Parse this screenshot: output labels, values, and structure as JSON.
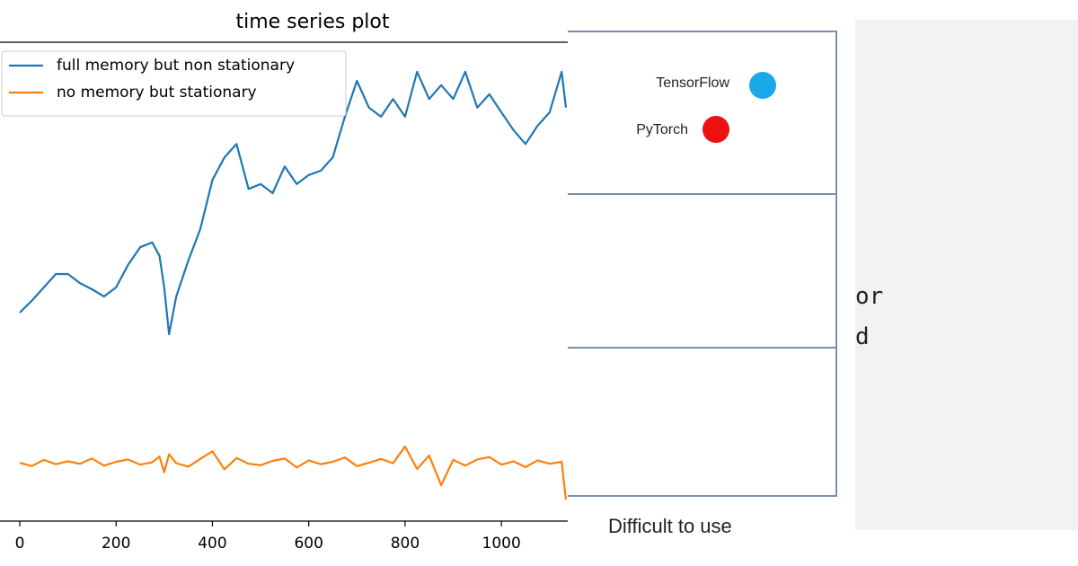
{
  "chart_data": {
    "type": "line",
    "title": "time series plot",
    "x": [
      0,
      25,
      50,
      75,
      100,
      125,
      150,
      175,
      200,
      225,
      250,
      275,
      290,
      300,
      310,
      325,
      350,
      375,
      400,
      425,
      450,
      475,
      500,
      525,
      550,
      575,
      600,
      625,
      650,
      675,
      700,
      725,
      750,
      775,
      800,
      825,
      850,
      875,
      900,
      925,
      950,
      975,
      1000,
      1025,
      1050,
      1075,
      1100,
      1125,
      1134
    ],
    "series": [
      {
        "name": "full memory but non stationary",
        "color": "#1f77b4",
        "values": [
          43.6,
          46.1,
          48.9,
          51.7,
          51.7,
          49.8,
          48.5,
          47.0,
          48.9,
          53.6,
          57.3,
          58.3,
          55.5,
          48.9,
          39.1,
          47.0,
          54.5,
          61.1,
          71.4,
          76.1,
          78.9,
          69.5,
          70.5,
          68.6,
          74.2,
          70.5,
          72.4,
          73.3,
          76.1,
          84.6,
          92.1,
          86.5,
          84.6,
          88.3,
          84.6,
          94.0,
          88.3,
          91.2,
          88.3,
          94.0,
          86.5,
          89.3,
          85.5,
          81.8,
          78.9,
          82.7,
          85.5,
          94.0,
          86.5
        ]
      },
      {
        "name": "no memory but stationary",
        "color": "#ff7f0e",
        "values": [
          12.2,
          11.5,
          12.8,
          11.9,
          12.5,
          12.0,
          13.1,
          11.6,
          12.4,
          12.9,
          11.8,
          12.3,
          13.5,
          10.2,
          14.0,
          12.1,
          11.4,
          13.0,
          14.6,
          10.8,
          13.2,
          12.0,
          11.7,
          12.6,
          13.1,
          11.2,
          12.7,
          11.9,
          12.4,
          13.3,
          11.5,
          12.2,
          13.0,
          12.1,
          15.6,
          10.9,
          13.7,
          7.5,
          12.8,
          11.6,
          12.9,
          13.4,
          11.8,
          12.5,
          11.3,
          12.7,
          12.0,
          12.4,
          4.5
        ]
      }
    ],
    "xlim": [
      -41,
      1134
    ],
    "xticks": [
      0,
      200,
      400,
      600,
      800,
      1000
    ],
    "ylim": [
      0,
      100
    ],
    "legend": "upper left"
  },
  "panel": {
    "points": [
      {
        "label": "TensorFlow",
        "color": "#1ba8e8"
      },
      {
        "label": "PyTorch",
        "color": "#ee1111"
      }
    ],
    "axis_label": "Difficult to use"
  },
  "fragment": {
    "lines": [
      "or",
      "d"
    ]
  }
}
